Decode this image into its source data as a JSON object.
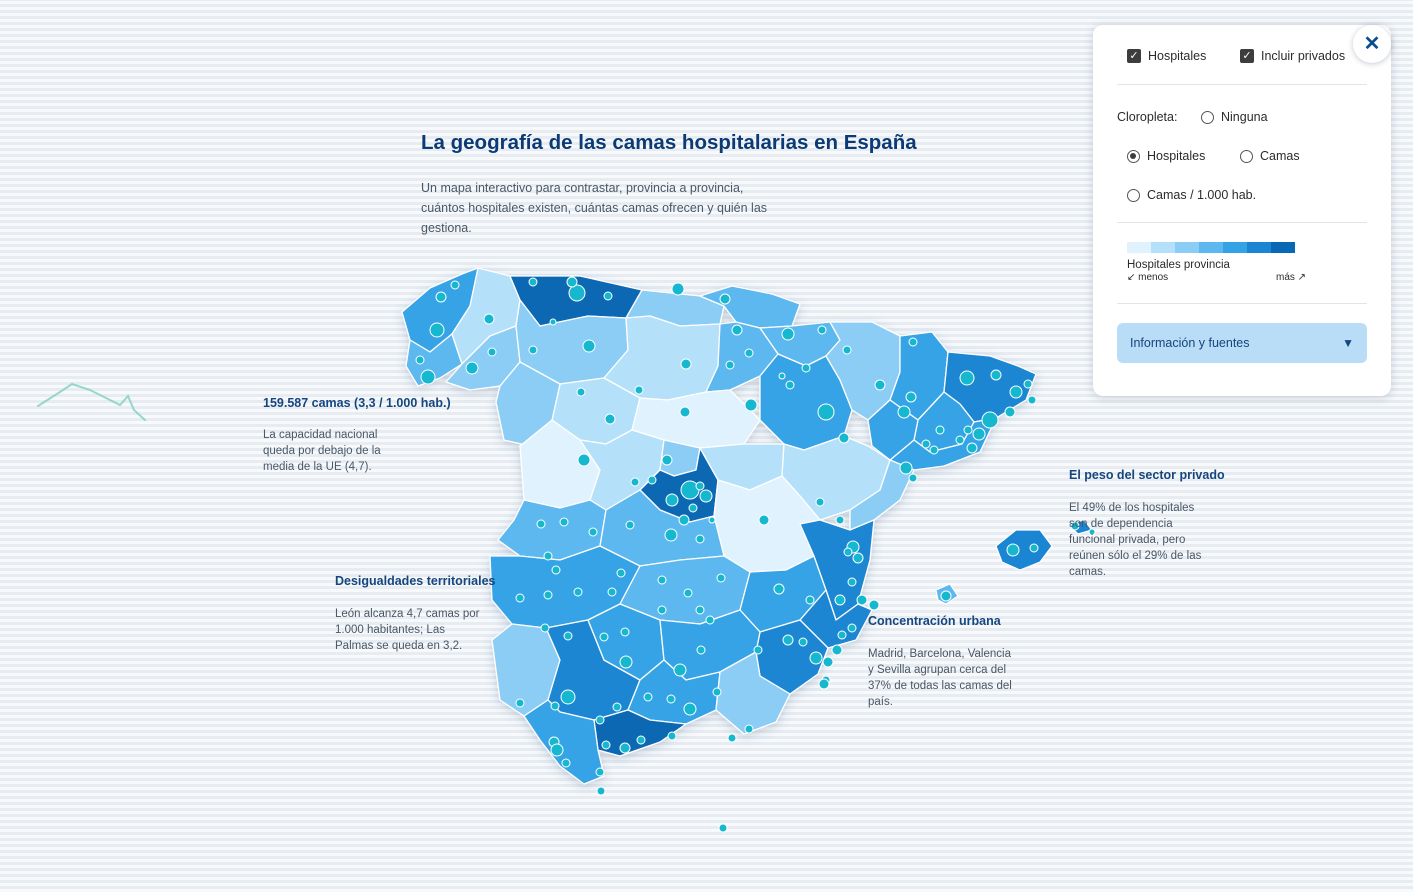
{
  "header": {
    "title": "La geografía de las camas hospitalarias en España",
    "subtitle": "Un mapa interactivo para contrastar, provincia a provincia, cuántos hospitales existen, cuántas camas ofrecen y quién las gestiona."
  },
  "annotations": [
    {
      "title": "159.587 camas (3,3 / 1.000 hab.)",
      "text": "La capacidad nacional queda por debajo de la media de la UE (4,7)."
    },
    {
      "title": "Desigualdades territoriales",
      "text": "León alcanza 4,7 camas por 1.000 habitantes; Las Palmas se queda en 3,2."
    },
    {
      "title": "El peso del sector privado",
      "text": "El 49% de los hospitales son de dependencia funcional privada, pero reúnen sólo el 29% de las camas."
    },
    {
      "title": "Concentración urbana",
      "text": "Madrid, Barcelona, Valencia y Sevilla agrupan cerca del 37% de todas las camas del país."
    }
  ],
  "controls": {
    "close_label": "✕",
    "checkboxes": [
      {
        "label": "Hospitales",
        "checked": true
      },
      {
        "label": "Incluir privados",
        "checked": true
      }
    ],
    "choropleth_label": "Cloropleta:",
    "radios": [
      {
        "label": "Ninguna",
        "selected": false
      },
      {
        "label": "Hospitales",
        "selected": true
      },
      {
        "label": "Camas",
        "selected": false
      },
      {
        "label": "Camas / 1.000 hab.",
        "selected": false
      }
    ],
    "legend": {
      "title": "Hospitales provincia",
      "min_label": "↙ menos",
      "max_label": "más ↗",
      "colors": [
        "#e0f2fd",
        "#b5e0fa",
        "#8bcdf5",
        "#5db8ef",
        "#34a3e6",
        "#1a86d3",
        "#0868b4"
      ]
    },
    "info_label": "Información y fuentes",
    "info_icon": "chevron-down-icon"
  },
  "map": {
    "border_color": "#ffffff",
    "hospital_marker_color": "#16b8cf",
    "choropleth_colors": [
      "#e0f2fd",
      "#b5e0fa",
      "#8bcdf5",
      "#5db8ef",
      "#34a3e6",
      "#1a86d3",
      "#0868b4"
    ]
  }
}
